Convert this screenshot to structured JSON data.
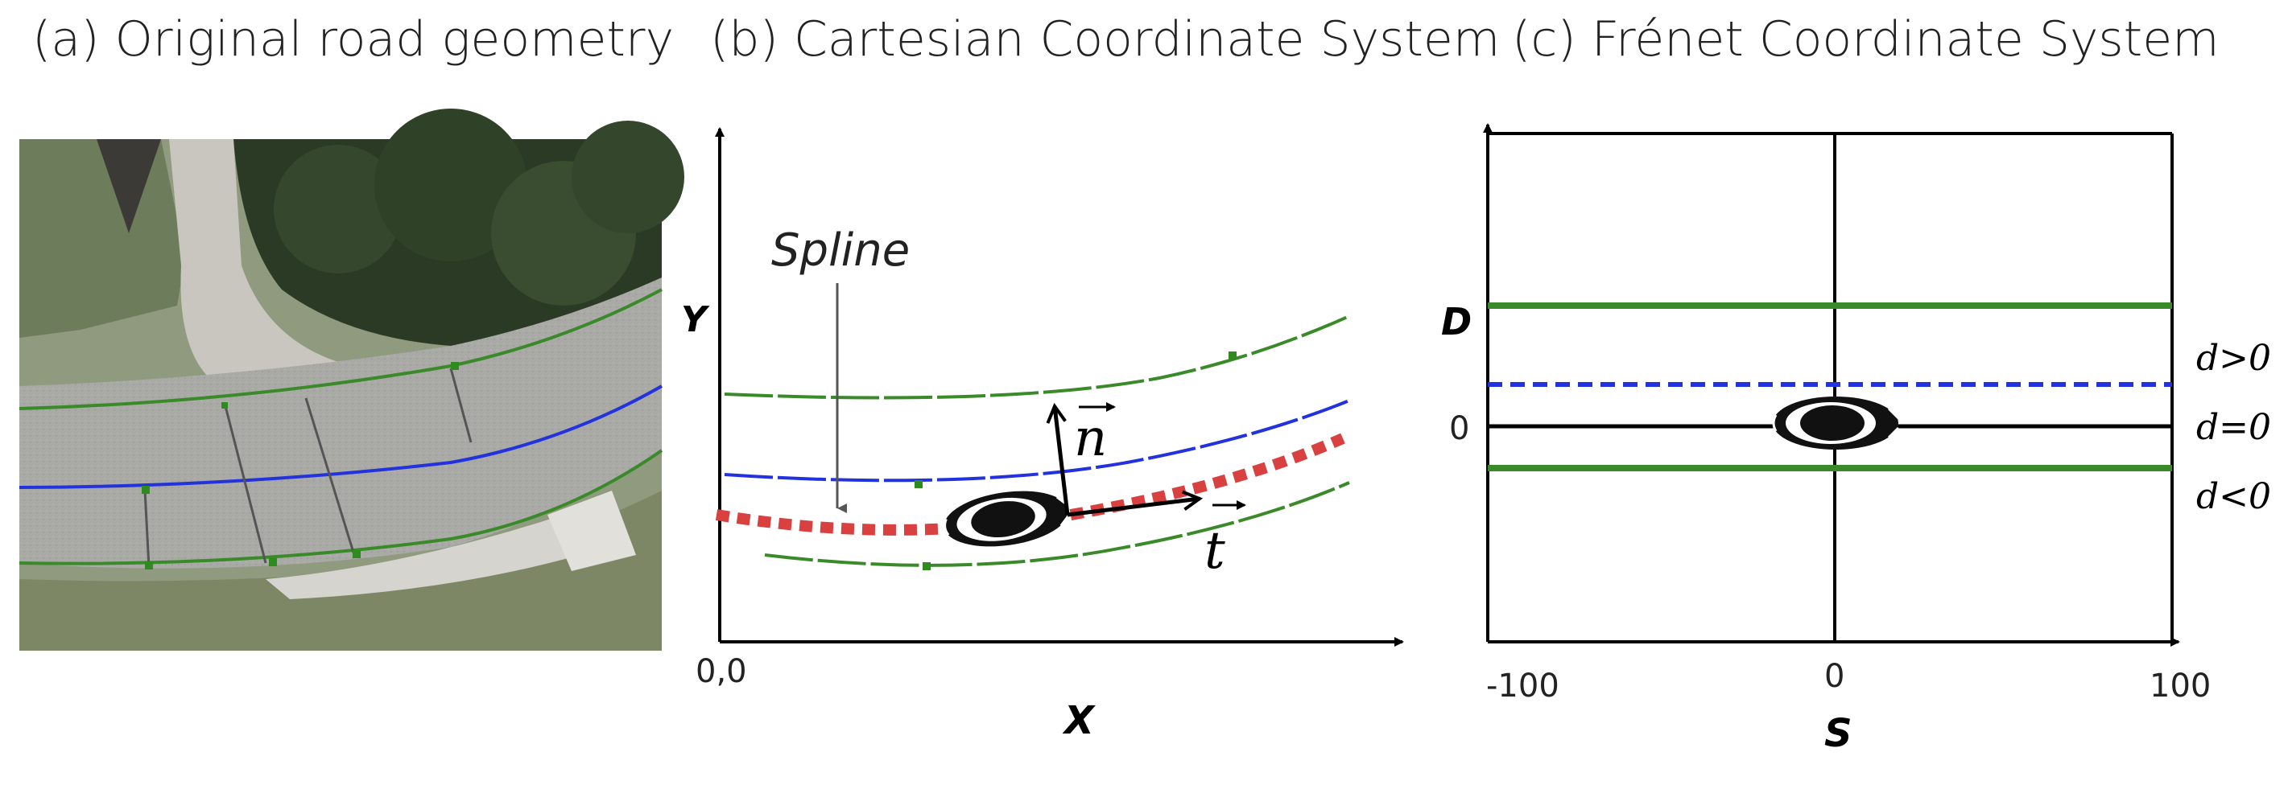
{
  "panels": {
    "a": {
      "title": "(a) Original road geometry"
    },
    "b": {
      "title": "(b) Cartesian Coordinate System",
      "spline_label": "Spline",
      "x_axis_label": "X",
      "y_axis_label": "Y",
      "origin_label": "0,0",
      "normal_vector_label": "n",
      "tangent_vector_label": "t"
    },
    "c": {
      "title": "(c) Frénet Coordinate System",
      "d_axis_label": "D",
      "s_axis_label": "S",
      "d_zero_tick": "0",
      "s_ticks": [
        "-100",
        "0",
        "100"
      ],
      "region_labels": {
        "above": "d>0",
        "center": "d=0",
        "below": "d<0"
      }
    }
  },
  "colors": {
    "lane_green": "#3a8a2a",
    "center_blue": "#2233dd",
    "spline_red": "#d94040",
    "axis": "#000000"
  }
}
